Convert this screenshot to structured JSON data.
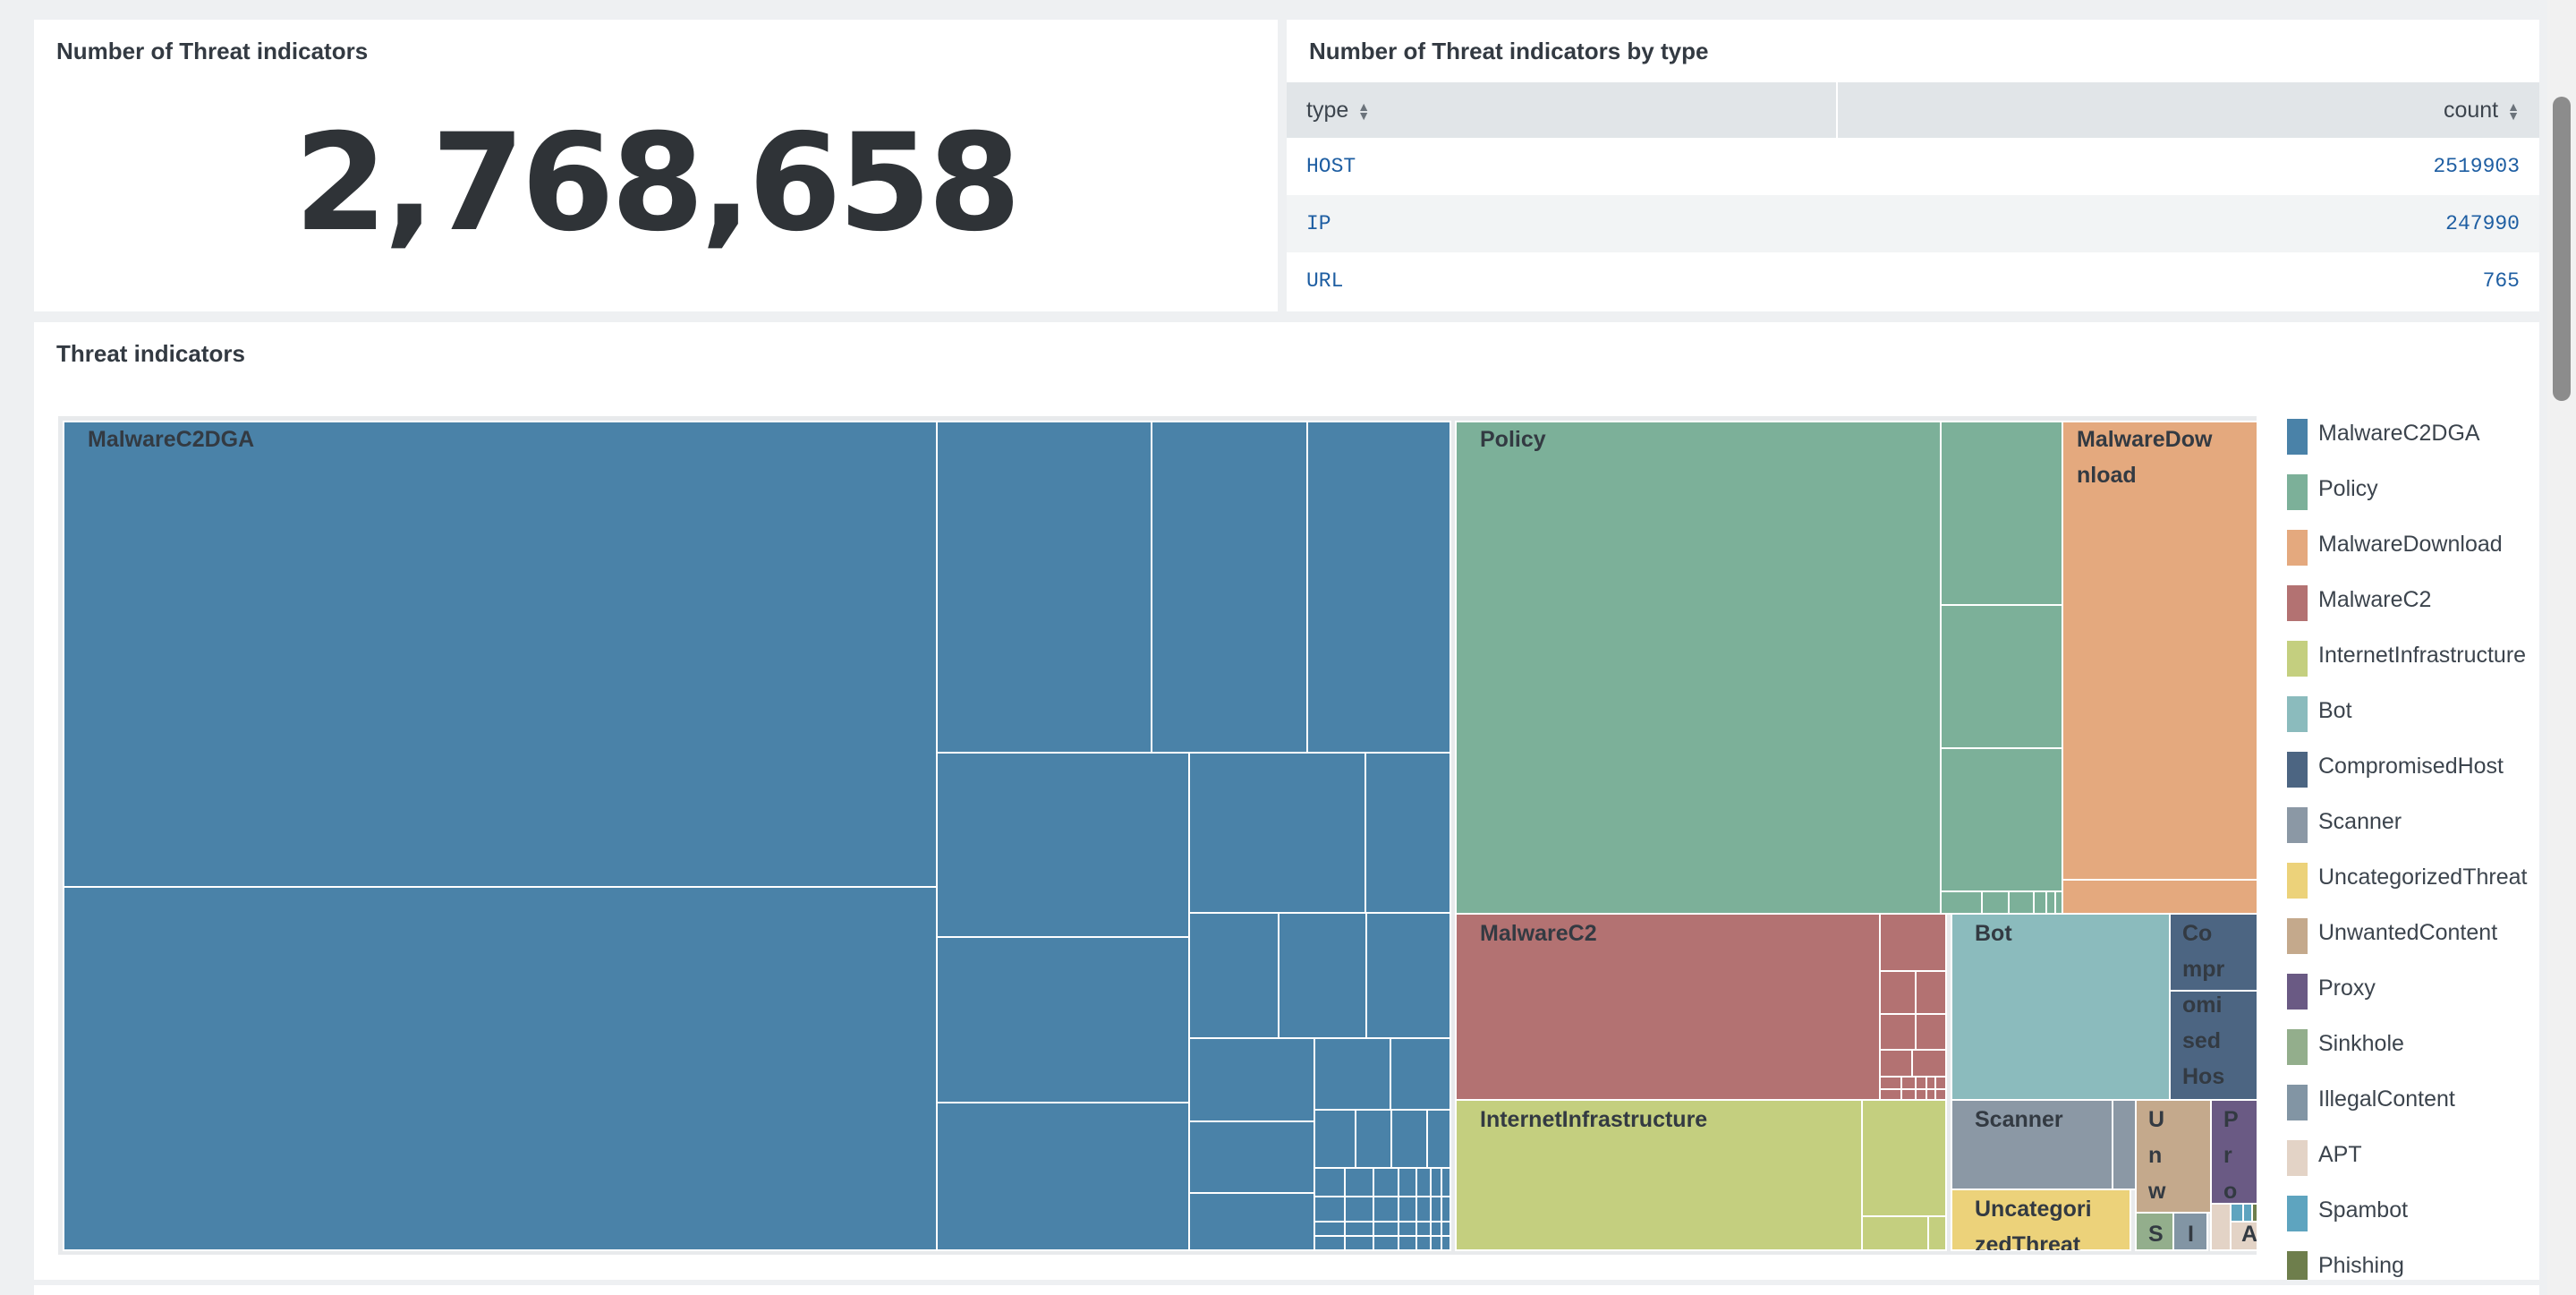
{
  "panels": {
    "single_value": {
      "title": "Number of Threat indicators",
      "value": "2,768,658"
    },
    "by_type": {
      "title": "Number of Threat indicators by type",
      "columns": {
        "type": "type",
        "count": "count"
      },
      "rows": [
        {
          "type": "HOST",
          "count": "2519903"
        },
        {
          "type": "IP",
          "count": "247990"
        },
        {
          "type": "URL",
          "count": "765"
        }
      ]
    },
    "treemap": {
      "title": "Threat indicators",
      "labels": {
        "malwarec2dga": "MalwareC2DGA",
        "policy": "Policy",
        "malwaredownload": "MalwareDow nload",
        "malwarec2": "MalwareC2",
        "bot": "Bot",
        "compromisedhost": "Co mpr omi sed Hos",
        "internetinfrastructure": "InternetInfrastructure",
        "scanner": "Scanner",
        "uncategorized": "Uncategori zedThreat",
        "unwanted": "U n w",
        "proxy": "P r o",
        "sinkhole": "S",
        "illegal": "I",
        "apt": "A"
      }
    }
  },
  "legend": [
    {
      "label": "MalwareC2DGA",
      "color": "#4a82a8"
    },
    {
      "label": "Policy",
      "color": "#7cb099"
    },
    {
      "label": "MalwareDownload",
      "color": "#e4a97e"
    },
    {
      "label": "MalwareC2",
      "color": "#b37272"
    },
    {
      "label": "InternetInfrastructure",
      "color": "#c4cf7f"
    },
    {
      "label": "Bot",
      "color": "#8bbbbd"
    },
    {
      "label": "CompromisedHost",
      "color": "#4c6582"
    },
    {
      "label": "Scanner",
      "color": "#8b98a5"
    },
    {
      "label": "UncategorizedThreat",
      "color": "#ecd27a"
    },
    {
      "label": "UnwantedContent",
      "color": "#c4a98c"
    },
    {
      "label": "Proxy",
      "color": "#6a5a84"
    },
    {
      "label": "Sinkhole",
      "color": "#93ae8c"
    },
    {
      "label": "IllegalContent",
      "color": "#8295a4"
    },
    {
      "label": "APT",
      "color": "#e3d3c6"
    },
    {
      "label": "Spambot",
      "color": "#5ea4bf"
    },
    {
      "label": "Phishing",
      "color": "#6e7e4c"
    }
  ]
}
